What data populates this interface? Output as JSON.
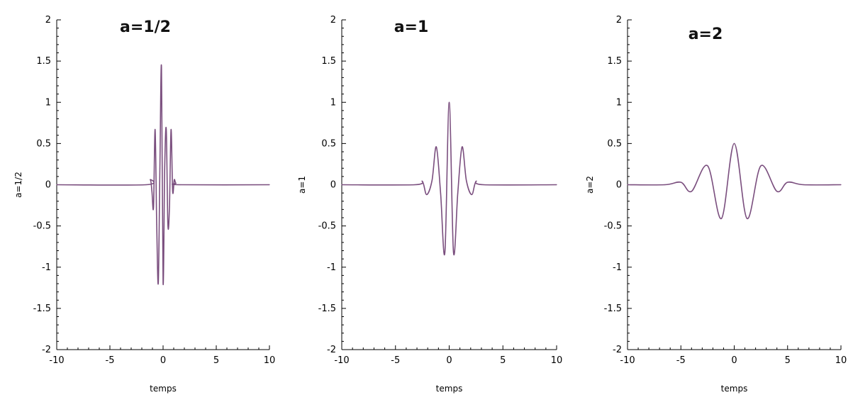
{
  "chart_data": [
    {
      "type": "line",
      "title": "a=1/2",
      "xlabel": "temps",
      "ylabel": "a=1/2",
      "xlim": [
        -10,
        10
      ],
      "ylim": [
        -2,
        2
      ],
      "xticks": [
        -10,
        -5,
        0,
        5,
        10
      ],
      "yticks": [
        -2,
        -1.5,
        -1,
        -0.5,
        0,
        0.5,
        1,
        1.5,
        2
      ],
      "grid": false,
      "series": [
        {
          "color": "#7a4e7e",
          "x": [
            -10,
            -1.6,
            -1.2,
            -1.05,
            -0.9,
            -0.75,
            -0.6,
            -0.45,
            -0.3,
            -0.15,
            0,
            0.15,
            0.3,
            0.45,
            0.6,
            0.75,
            0.9,
            1.05,
            1.2,
            1.6,
            10
          ],
          "y": [
            0,
            0,
            0.06,
            -0.08,
            -0.27,
            0.67,
            -0.48,
            -1.19,
            0.2,
            1.42,
            -1.19,
            0.2,
            0.67,
            -0.48,
            -0.27,
            0.67,
            -0.08,
            0.06,
            0.02,
            0,
            0
          ]
        }
      ]
    },
    {
      "type": "line",
      "title": "a=1",
      "xlabel": "temps",
      "ylabel": "a=1",
      "xlim": [
        -10,
        10
      ],
      "ylim": [
        -2,
        2
      ],
      "xticks": [
        -10,
        -5,
        0,
        5,
        10
      ],
      "yticks": [
        -2,
        -1.5,
        -1,
        -0.5,
        0,
        0.5,
        1,
        1.5,
        2
      ],
      "grid": false,
      "series": [
        {
          "color": "#7a4e7e",
          "x": [
            -10,
            -3.2,
            -2.5,
            -2.1,
            -1.6,
            -1.2,
            -0.8,
            -0.4,
            0,
            0.4,
            0.8,
            1.2,
            1.6,
            2.1,
            2.5,
            3.2,
            10
          ],
          "y": [
            0,
            0,
            0.04,
            -0.12,
            0.05,
            0.46,
            -0.1,
            -0.82,
            1.0,
            -0.82,
            -0.1,
            0.46,
            0.05,
            -0.12,
            0.04,
            0,
            0
          ]
        }
      ]
    },
    {
      "type": "line",
      "title": "a=2",
      "xlabel": "temps",
      "ylabel": "a=2",
      "xlim": [
        -10,
        10
      ],
      "ylim": [
        -2,
        2
      ],
      "xticks": [
        -10,
        -5,
        0,
        5,
        10
      ],
      "yticks": [
        -2,
        -1.5,
        -1,
        -0.5,
        0,
        0.5,
        1,
        1.5,
        2
      ],
      "grid": false,
      "series": [
        {
          "color": "#7a4e7e",
          "x": [
            -10,
            -6.5,
            -5,
            -4,
            -2.5,
            -1.2,
            0,
            1.2,
            2.5,
            4,
            5,
            6.5,
            10
          ],
          "y": [
            0,
            0,
            0.03,
            -0.08,
            0.23,
            -0.41,
            0.5,
            -0.41,
            0.23,
            -0.08,
            0.03,
            0,
            0
          ]
        }
      ]
    }
  ]
}
